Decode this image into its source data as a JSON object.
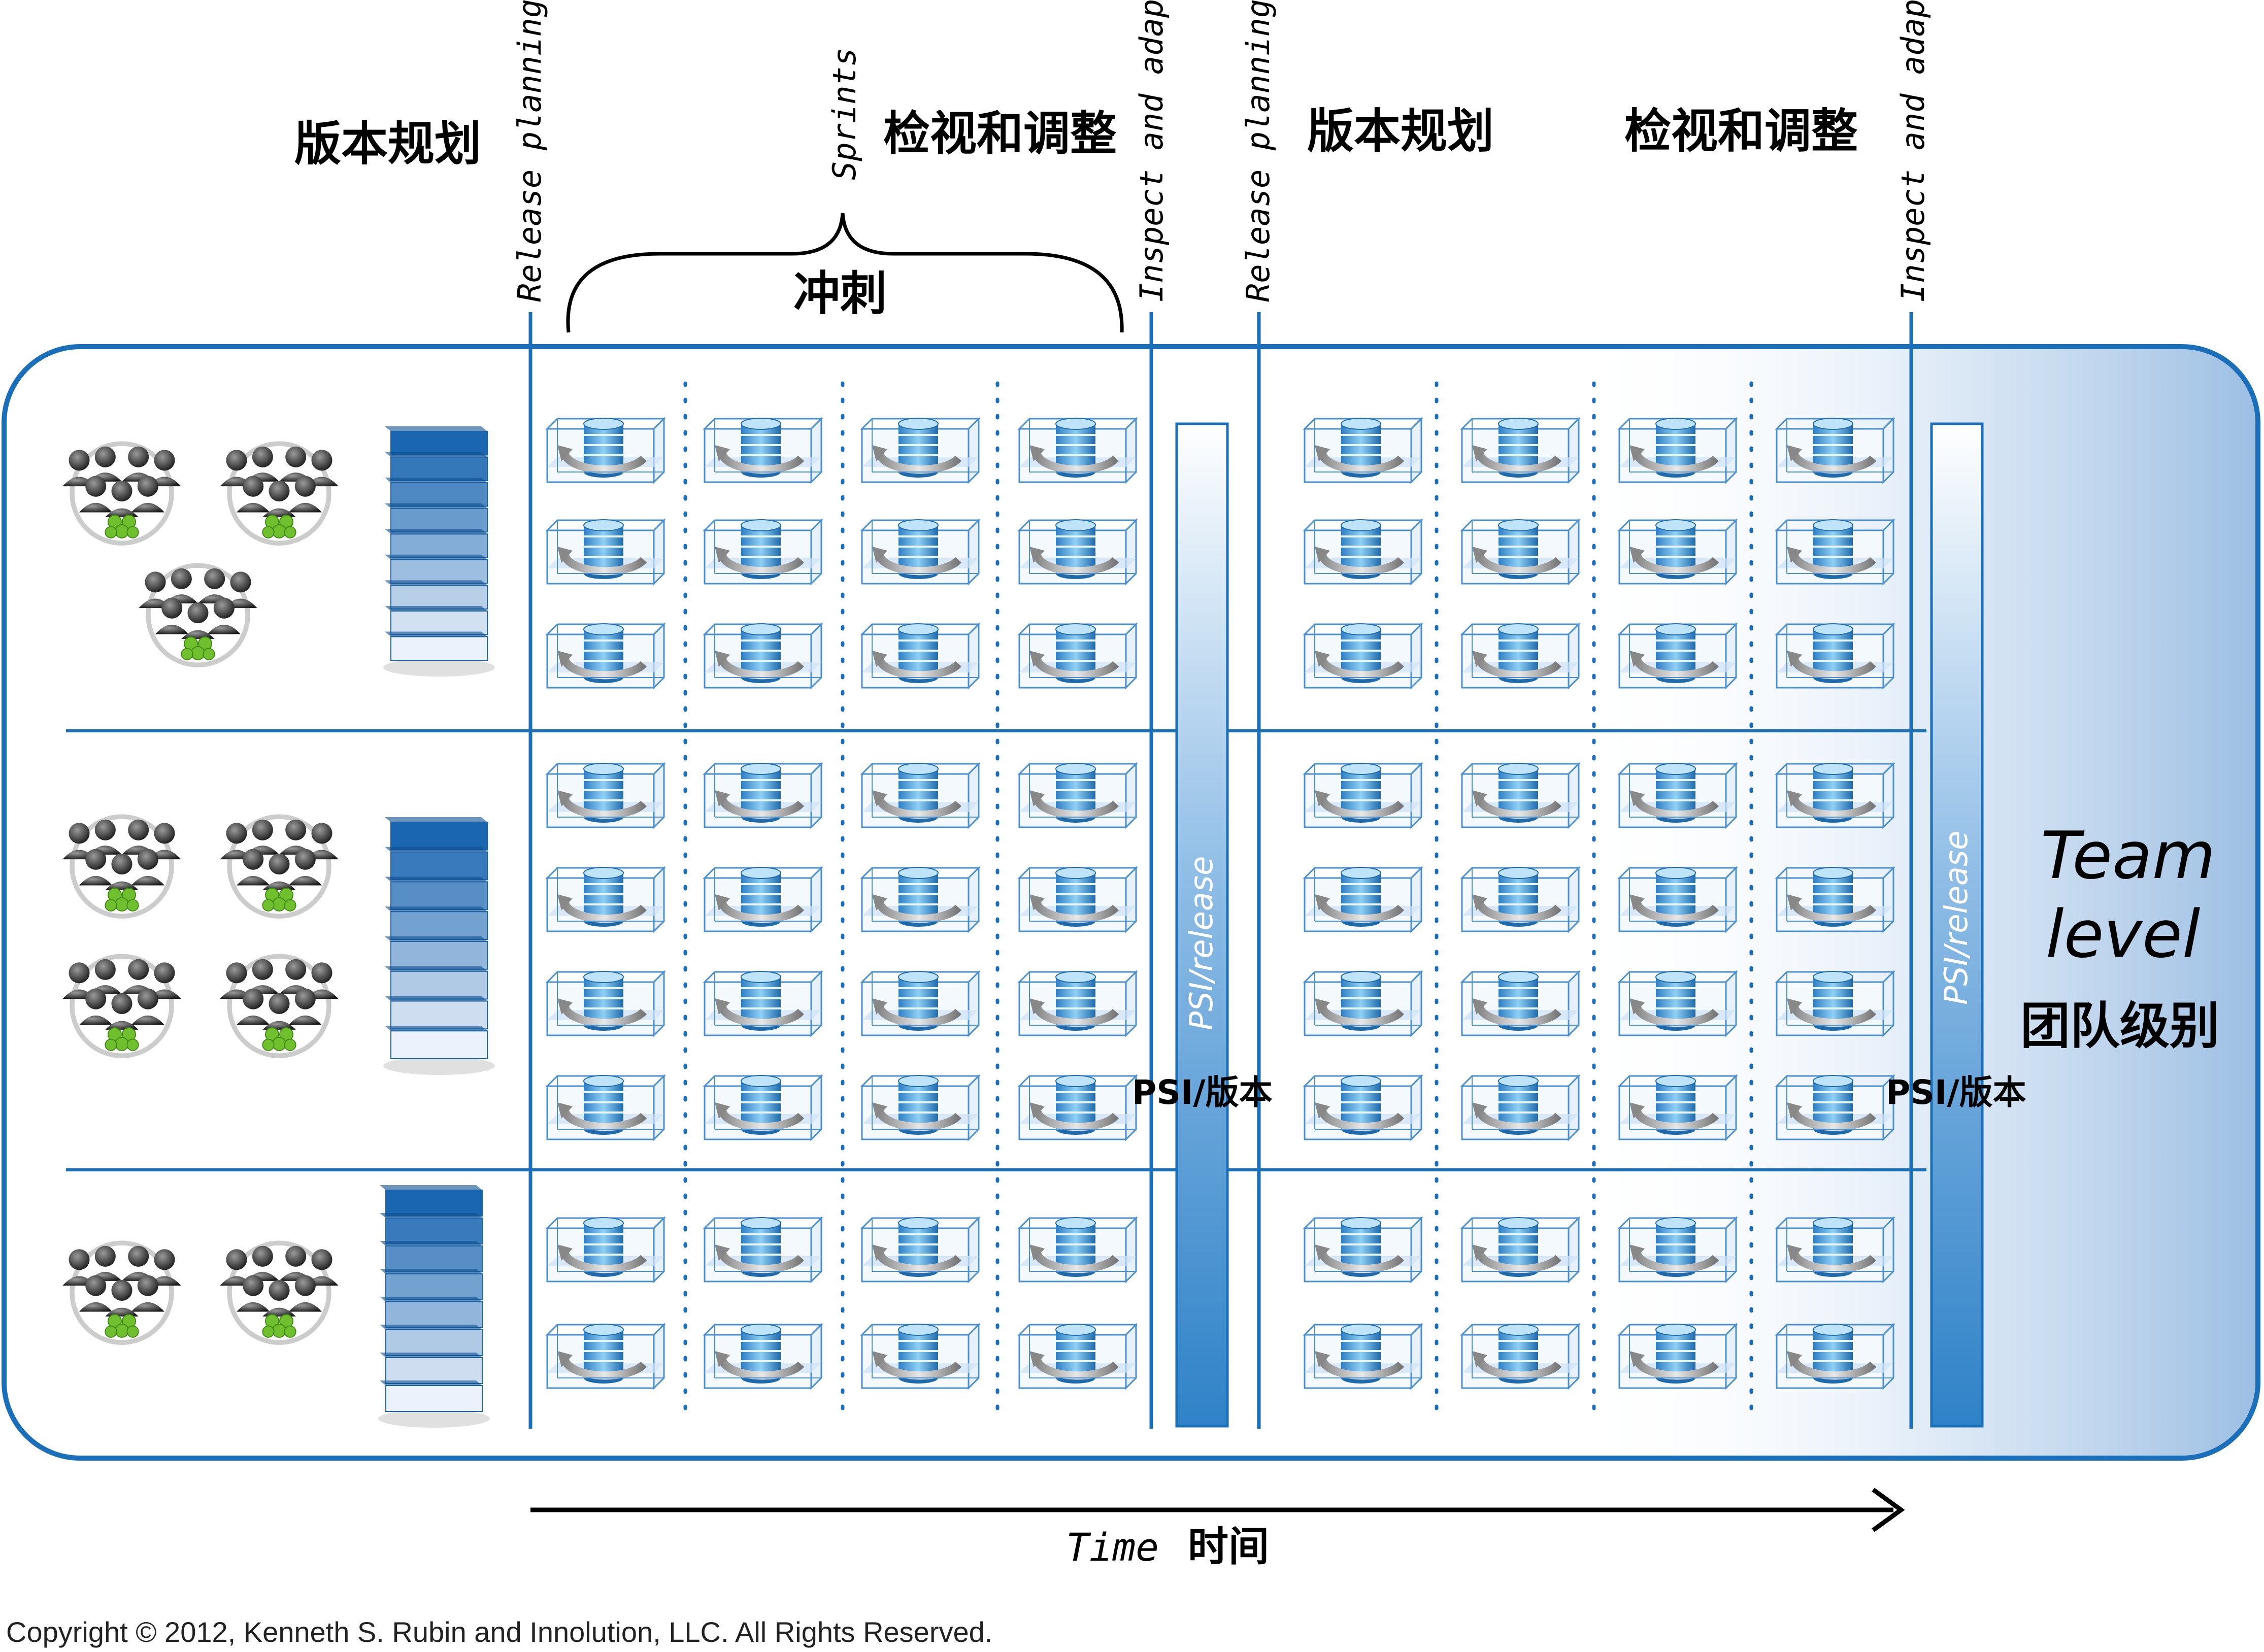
{
  "header": {
    "release_planning_cn": "版本规划",
    "release_planning_en": "Release planning",
    "sprints_en": "Sprints",
    "sprints_cn": "冲刺",
    "inspect_adapt_cn": "检视和调整",
    "inspect_adapt_en": "Inspect and adapt"
  },
  "release_bar": {
    "label_en": "PSI/release",
    "label_cn": "PSI/版本"
  },
  "level": {
    "en_line1": "Team",
    "en_line2": "level",
    "cn": "团队级别"
  },
  "timeline": {
    "en": "Time",
    "cn": "时间"
  },
  "teams": {
    "team_groups_per_row": [
      3,
      4,
      2
    ],
    "sprint_rows_per_row": [
      3,
      4,
      2
    ],
    "sprints_per_release": 4,
    "releases": 2
  },
  "footer": {
    "copyright": "Copyright © 2012, Kenneth S. Rubin and Innolution, LLC. All Rights Reserved."
  },
  "colors": {
    "frame": "#1a6fb8",
    "bar": "#3f8fcf",
    "fade": "#9dbfe3",
    "text": "#000000"
  }
}
